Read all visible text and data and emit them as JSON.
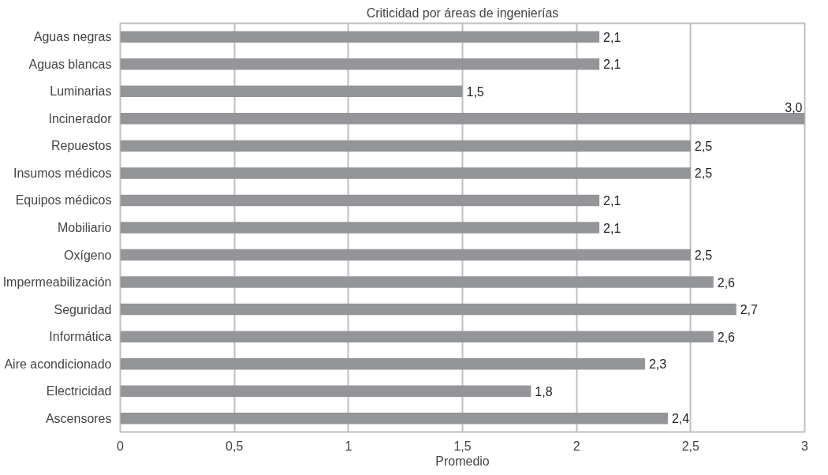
{
  "chart_data": {
    "type": "bar",
    "orientation": "horizontal",
    "title": "Criticidad por áreas de ingenierías",
    "xlabel": "Promedio",
    "categories": [
      "Aguas negras",
      "Aguas blancas",
      "Luminarias",
      "Incinerador",
      "Repuestos",
      "Insumos médicos",
      "Equipos médicos",
      "Mobiliario",
      "Oxígeno",
      "Impermeabilización",
      "Seguridad",
      "Informática",
      "Aire acondicionado",
      "Electricidad",
      "Ascensores"
    ],
    "values": [
      2.1,
      2.1,
      1.5,
      3.0,
      2.5,
      2.5,
      2.1,
      2.1,
      2.5,
      2.6,
      2.7,
      2.6,
      2.3,
      1.8,
      2.4
    ],
    "value_labels": [
      "2,1",
      "2,1",
      "1,5",
      "3,0",
      "2,5",
      "2,5",
      "2,1",
      "2,1",
      "2,5",
      "2,6",
      "2,7",
      "2,6",
      "2,3",
      "1,8",
      "2,4"
    ],
    "color": "#939598",
    "xlim": [
      0,
      3
    ],
    "xticks": [
      0,
      {
        "value": 0.5,
        "label": "0,5"
      },
      1,
      {
        "value": 1.5,
        "label": "1,5"
      },
      2,
      {
        "value": 2.5,
        "label": "2,5"
      },
      3
    ],
    "grid": "x"
  }
}
